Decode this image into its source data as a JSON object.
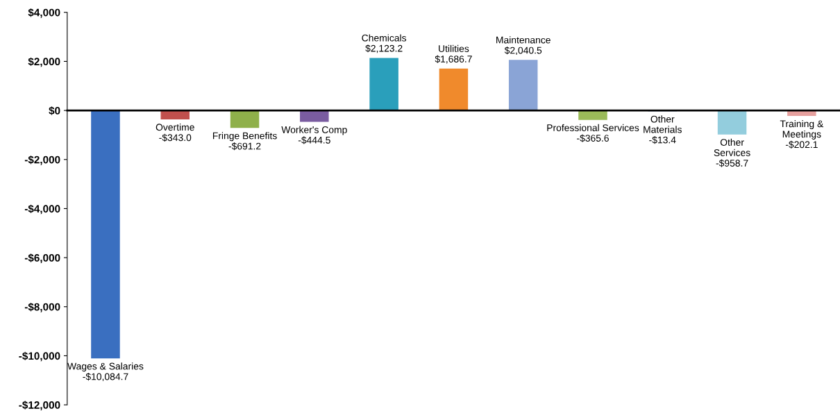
{
  "chart_data": {
    "type": "bar",
    "categories": [
      "Wages & Salaries",
      "Overtime",
      "Fringe Benefits",
      "Worker's Comp",
      "Chemicals",
      "Utilities",
      "Maintenance",
      "Professional Services",
      "Other\nMaterials",
      "Other\nServices",
      "Training &\nMeetings"
    ],
    "values": [
      -10084.7,
      -343.0,
      -691.2,
      -444.5,
      2123.2,
      1686.7,
      2040.5,
      -365.6,
      -13.4,
      -958.7,
      -202.1
    ],
    "value_labels": [
      "-$10,084.7",
      "-$343.0",
      "-$691.2",
      "-$444.5",
      "$2,123.2",
      "$1,686.7",
      "$2,040.5",
      "-$365.6",
      "-$13.4",
      "-$958.7",
      "-$202.1"
    ],
    "colors": [
      "#3a6fc0",
      "#c0504d",
      "#8fb04a",
      "#7a5ca0",
      "#2a9fbb",
      "#f08a2c",
      "#8aa4d6",
      "#9bbb59",
      "#4f81bd",
      "#93cddd",
      "#e6a09e"
    ],
    "ylim": [
      -12000,
      4000
    ],
    "yticks": [
      {
        "value": 4000,
        "label": "$4,000"
      },
      {
        "value": 2000,
        "label": "$2,000"
      },
      {
        "value": 0,
        "label": "$0"
      },
      {
        "value": -2000,
        "label": "-$2,000"
      },
      {
        "value": -4000,
        "label": "-$4,000"
      },
      {
        "value": -6000,
        "label": "-$6,000"
      },
      {
        "value": -8000,
        "label": "-$8,000"
      },
      {
        "value": -10000,
        "label": "-$10,000"
      },
      {
        "value": -12000,
        "label": "-$12,000"
      }
    ],
    "tick_labels": "y",
    "grid": false,
    "legend": false
  }
}
